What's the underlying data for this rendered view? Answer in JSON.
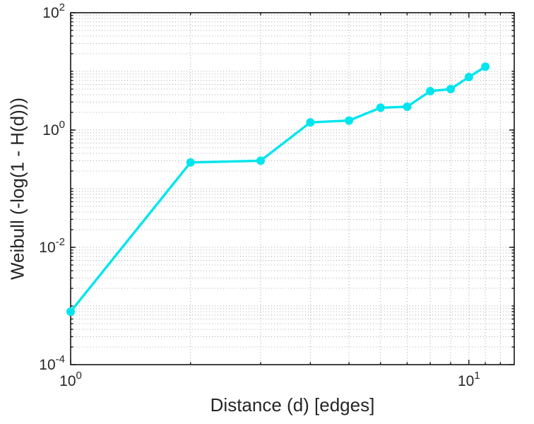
{
  "chart_data": {
    "type": "line",
    "title": "",
    "xlabel": "Distance (d) [edges]",
    "ylabel": "Weibull (-log(1 - H(d)))",
    "x_scale": "log",
    "y_scale": "log",
    "xlim": [
      1,
      13
    ],
    "ylim": [
      0.0001,
      100
    ],
    "x_tick_exponents": [
      0,
      1
    ],
    "y_tick_exponents": [
      -4,
      -2,
      0,
      2
    ],
    "grid": "log-minor-dotted",
    "legend": "none",
    "series": [
      {
        "x": [
          1,
          2,
          3,
          4,
          5,
          6,
          7,
          8,
          9,
          10,
          11
        ],
        "y": [
          0.0008,
          0.28,
          0.3,
          1.35,
          1.45,
          2.4,
          2.5,
          4.6,
          5.0,
          8.0,
          12
        ],
        "marker": "circle",
        "color": "#00e5ee"
      }
    ],
    "colors": {
      "line": "#00e5ee",
      "grid": "#b0b0b0",
      "axis": "#141414",
      "text": "#262626"
    }
  }
}
